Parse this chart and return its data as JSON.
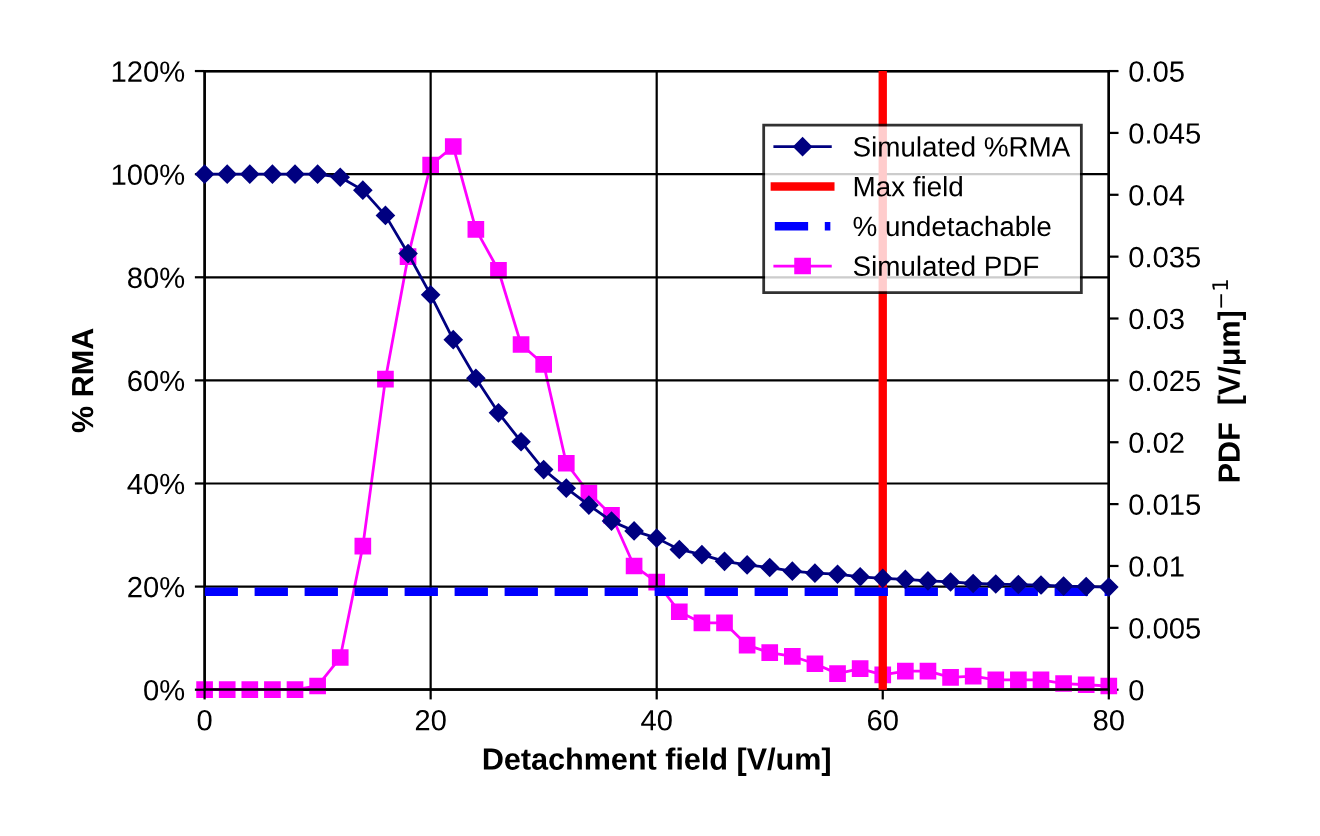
{
  "chart_data": {
    "type": "line",
    "xlabel": "Detachment field [V/um]",
    "ylabel": "% RMA",
    "y2label": "PDF  [V/μm]$^{−1}$",
    "xlim": [
      0,
      80
    ],
    "xticks": [
      0,
      20,
      40,
      60,
      80
    ],
    "ylim": [
      0,
      120
    ],
    "yticks": [
      {
        "value": 0,
        "label": "0%"
      },
      {
        "value": 20,
        "label": "20%"
      },
      {
        "value": 40,
        "label": "40%"
      },
      {
        "value": 60,
        "label": "60%"
      },
      {
        "value": 80,
        "label": "80%"
      },
      {
        "value": 100,
        "label": "100%"
      },
      {
        "value": 120,
        "label": "120%"
      }
    ],
    "y2lim": [
      0,
      0.05
    ],
    "y2ticks": [
      0,
      0.005,
      0.01,
      0.015,
      0.02,
      0.025,
      0.03,
      0.035,
      0.04,
      0.045,
      0.05
    ],
    "grid": true,
    "legend": "top right",
    "x": [
      0,
      2,
      4,
      6,
      8,
      10,
      12,
      14,
      16,
      18,
      20,
      22,
      24,
      26,
      28,
      30,
      32,
      34,
      36,
      38,
      40,
      42,
      44,
      46,
      48,
      50,
      52,
      54,
      56,
      58,
      60,
      62,
      64,
      66,
      68,
      70,
      72,
      74,
      76,
      78,
      80
    ],
    "series": [
      {
        "name": "Simulated %RMA",
        "color": "#000080",
        "marker": "diamond",
        "values": [
          100,
          100,
          100,
          100,
          100,
          100,
          99.4,
          96.9,
          92,
          84.6,
          76.6,
          67.9,
          60.4,
          53.7,
          48.1,
          42.7,
          39.1,
          35.8,
          32.7,
          30.8,
          29.4,
          27.2,
          26.2,
          24.9,
          24.2,
          23.7,
          23.0,
          22.6,
          22.4,
          21.9,
          21.6,
          21.4,
          21.1,
          20.9,
          20.6,
          20.5,
          20.4,
          20.3,
          20.1,
          20.0,
          19.9
        ]
      },
      {
        "name": "Simulated PDF",
        "color": "#ff00ff",
        "marker": "square",
        "axis": "y2",
        "values": [
          0,
          0,
          0,
          0,
          0,
          0.0003,
          0.0026,
          0.0116,
          0.0251,
          0.035,
          0.0424,
          0.0439,
          0.0372,
          0.0339,
          0.0279,
          0.0263,
          0.0183,
          0.0159,
          0.0141,
          0.01,
          0.0087,
          0.0063,
          0.0054,
          0.0054,
          0.0036,
          0.003,
          0.0027,
          0.0021,
          0.0013,
          0.0017,
          0.0012,
          0.0015,
          0.0015,
          0.001,
          0.0011,
          0.0008,
          0.0008,
          0.0008,
          0.0005,
          0.0004,
          0.0003
        ]
      }
    ],
    "ref_lines": [
      {
        "axis": "x",
        "value": 60,
        "label": "Max field",
        "color": "#ff0000",
        "line_style": "solid"
      },
      {
        "axis": "y",
        "value": 19,
        "label": "% undetachable",
        "color": "#0000ff",
        "line_style": "dashed"
      }
    ]
  }
}
